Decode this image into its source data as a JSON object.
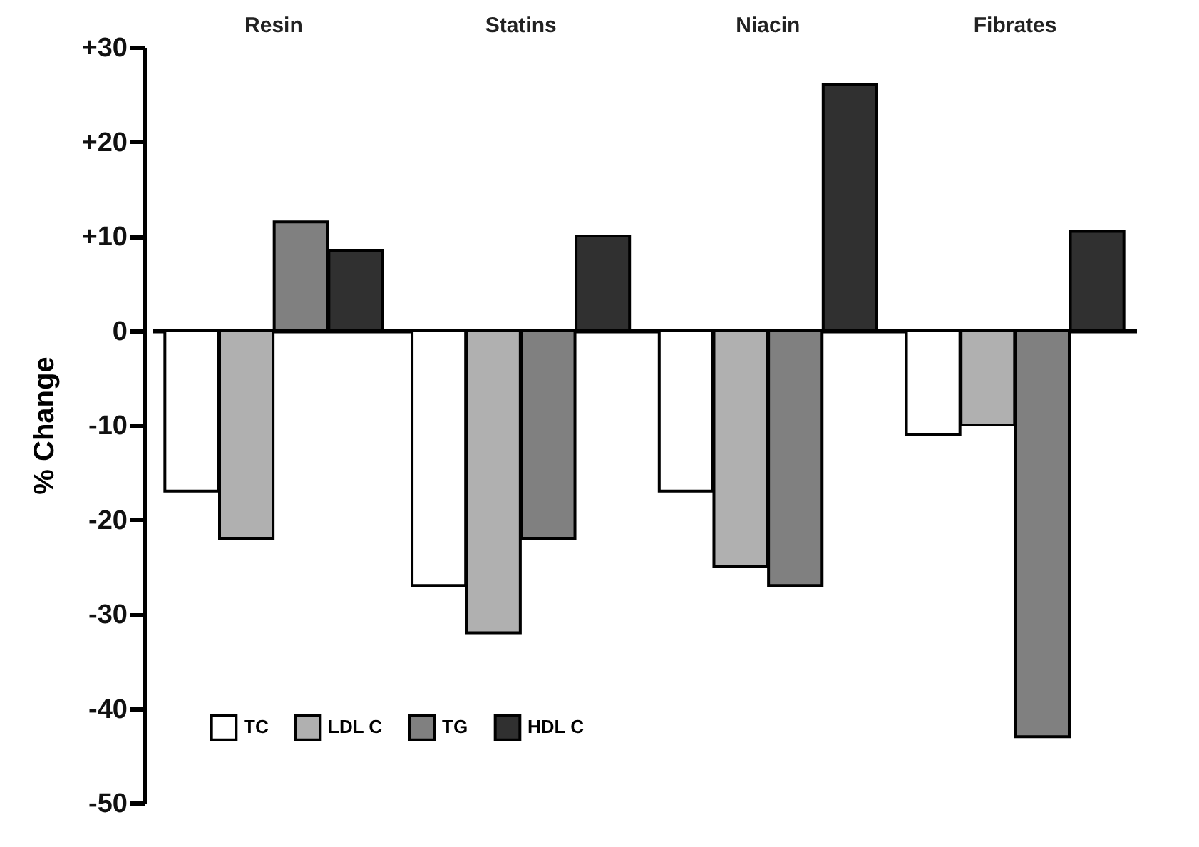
{
  "chart_data": {
    "type": "bar",
    "ylabel": "% Change",
    "categories": [
      "Resin",
      "Statins",
      "Niacin",
      "Fibrates"
    ],
    "series": [
      {
        "name": "TC",
        "color": "#ffffff",
        "values": [
          -17,
          -27,
          -17,
          -11
        ]
      },
      {
        "name": "LDL C",
        "color": "#b0b0b0",
        "values": [
          -22,
          -32,
          -25,
          -10
        ]
      },
      {
        "name": "TG",
        "color": "#808080",
        "values": [
          11.5,
          -22,
          -27,
          -43
        ]
      },
      {
        "name": "HDL C",
        "color": "#303030",
        "values": [
          8.5,
          10,
          26,
          10.5
        ]
      }
    ],
    "ylim": [
      -50,
      30
    ],
    "yticks": [
      {
        "value": 30,
        "label": "+30"
      },
      {
        "value": 20,
        "label": "+20"
      },
      {
        "value": 10,
        "label": "+10"
      },
      0,
      -10,
      -20,
      -30,
      -40,
      -50
    ],
    "legend": "bottom left"
  }
}
